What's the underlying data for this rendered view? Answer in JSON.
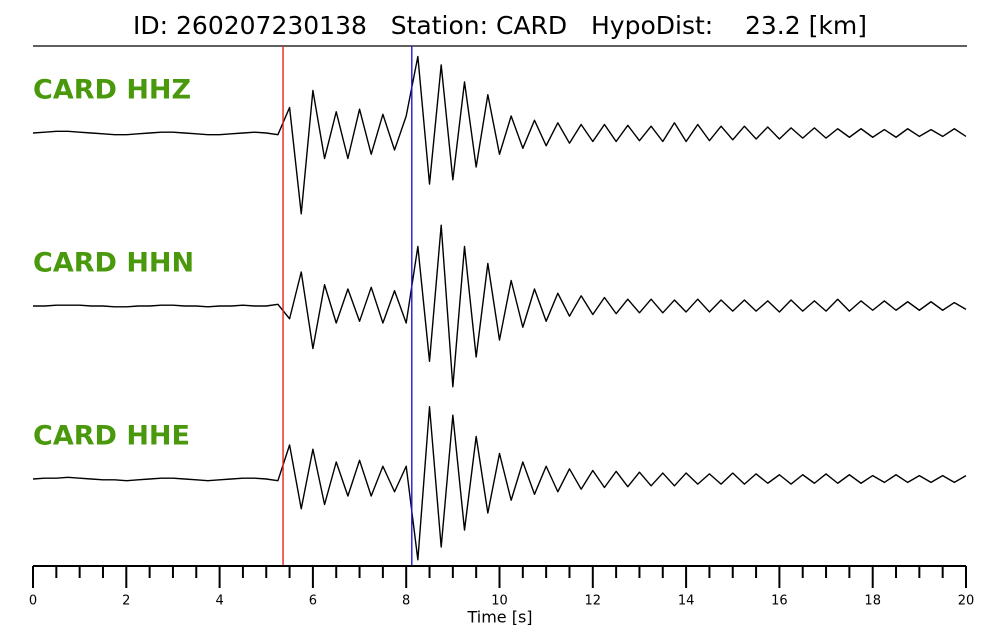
{
  "chart_data": {
    "type": "seismogram",
    "title": "ID: 260207230138   Station: CARD   HypoDist:    23.2 [km]",
    "xlabel": "Time [s]",
    "xlim": [
      0,
      20
    ],
    "xticks": [
      0,
      2,
      4,
      6,
      8,
      10,
      12,
      14,
      16,
      18,
      20
    ],
    "xminorticks": [
      0.5,
      1,
      1.5,
      2.5,
      3,
      3.5,
      4.5,
      5,
      5.5,
      6.5,
      7,
      7.5,
      8.5,
      9,
      9.5,
      10.5,
      11,
      11.5,
      12.5,
      13,
      13.5,
      14.5,
      15,
      15.5,
      16.5,
      17,
      17.5,
      18.5,
      19,
      19.5
    ],
    "picks": [
      {
        "value": 5.36,
        "color": "#e8211d"
      },
      {
        "value": 8.12,
        "color": "#1a1adb"
      }
    ],
    "x": [
      0,
      0.25,
      0.5,
      0.75,
      1,
      1.25,
      1.5,
      1.75,
      2,
      2.25,
      2.5,
      2.75,
      3,
      3.25,
      3.5,
      3.75,
      4,
      4.25,
      4.5,
      4.75,
      5,
      5.25,
      5.5,
      5.75,
      6,
      6.25,
      6.5,
      6.75,
      7,
      7.25,
      7.5,
      7.75,
      8,
      8.25,
      8.5,
      8.75,
      9,
      9.25,
      9.5,
      9.75,
      10,
      10.25,
      10.5,
      10.75,
      11,
      11.25,
      11.5,
      11.75,
      12,
      12.25,
      12.5,
      12.75,
      13,
      13.25,
      13.5,
      13.75,
      14,
      14.25,
      14.5,
      14.75,
      15,
      15.25,
      15.5,
      15.75,
      16,
      16.25,
      16.5,
      16.75,
      17,
      17.25,
      17.5,
      17.75,
      18,
      18.25,
      18.5,
      18.75,
      19,
      19.25,
      19.5,
      19.75,
      20
    ],
    "series": [
      {
        "name": "CARD HHZ",
        "color": "#000000",
        "values": [
          0,
          0.01,
          0.02,
          0.02,
          0.01,
          0,
          -0.01,
          -0.02,
          -0.02,
          -0.01,
          0,
          0.01,
          0.01,
          0,
          -0.01,
          -0.02,
          -0.02,
          -0.01,
          0,
          0.01,
          0,
          -0.02,
          0.3,
          -0.95,
          0.5,
          -0.3,
          0.25,
          -0.3,
          0.28,
          -0.25,
          0.22,
          -0.2,
          0.2,
          0.9,
          -0.6,
          0.8,
          -0.55,
          0.6,
          -0.4,
          0.45,
          -0.25,
          0.2,
          -0.18,
          0.15,
          -0.15,
          0.12,
          -0.12,
          0.1,
          -0.1,
          0.1,
          -0.1,
          0.09,
          -0.09,
          0.08,
          -0.1,
          0.12,
          -0.1,
          0.1,
          -0.09,
          0.08,
          -0.08,
          0.08,
          -0.07,
          0.07,
          -0.07,
          0.06,
          -0.06,
          0.06,
          -0.06,
          0.05,
          -0.05,
          0.05,
          -0.05,
          0.04,
          -0.05,
          0.05,
          -0.04,
          0.04,
          -0.04,
          0.05,
          -0.04
        ]
      },
      {
        "name": "CARD HHN",
        "color": "#000000",
        "values": [
          0,
          0,
          0.01,
          0.01,
          0.01,
          0,
          0,
          -0.01,
          -0.01,
          0,
          0,
          0.01,
          0.01,
          0,
          0,
          -0.01,
          0,
          0,
          0.01,
          0,
          0,
          0.02,
          -0.15,
          0.4,
          -0.5,
          0.25,
          -0.2,
          0.2,
          -0.18,
          0.22,
          -0.2,
          0.18,
          -0.2,
          0.7,
          -0.65,
          0.95,
          -0.95,
          0.7,
          -0.6,
          0.5,
          -0.4,
          0.3,
          -0.25,
          0.2,
          -0.18,
          0.15,
          -0.12,
          0.12,
          -0.1,
          0.1,
          -0.09,
          0.08,
          -0.08,
          0.08,
          -0.08,
          0.07,
          -0.07,
          0.08,
          -0.07,
          0.07,
          -0.06,
          0.07,
          -0.06,
          0.06,
          -0.07,
          0.07,
          -0.06,
          0.06,
          -0.06,
          0.08,
          -0.06,
          0.06,
          -0.05,
          0.06,
          -0.05,
          0.05,
          -0.05,
          0.05,
          -0.05,
          0.04,
          -0.04
        ]
      },
      {
        "name": "CARD HHE",
        "color": "#000000",
        "values": [
          0,
          0.01,
          0.01,
          0.02,
          0.01,
          0,
          -0.01,
          -0.01,
          -0.02,
          -0.01,
          0,
          0.01,
          0.01,
          0,
          -0.01,
          -0.02,
          -0.01,
          0,
          0.01,
          0.01,
          0,
          -0.02,
          0.4,
          -0.35,
          0.35,
          -0.3,
          0.2,
          -0.2,
          0.22,
          -0.2,
          0.15,
          -0.15,
          0.15,
          -0.95,
          0.85,
          -0.8,
          0.75,
          -0.6,
          0.5,
          -0.4,
          0.3,
          -0.25,
          0.2,
          -0.18,
          0.15,
          -0.15,
          0.12,
          -0.12,
          0.1,
          -0.1,
          0.09,
          -0.09,
          0.08,
          -0.08,
          0.07,
          -0.08,
          0.07,
          -0.06,
          0.06,
          -0.06,
          0.07,
          -0.06,
          0.06,
          -0.05,
          0.05,
          -0.06,
          0.05,
          -0.05,
          0.06,
          -0.05,
          0.05,
          -0.05,
          0.04,
          -0.04,
          0.05,
          -0.04,
          0.04,
          -0.04,
          0.04,
          -0.04,
          0.04
        ]
      }
    ]
  }
}
